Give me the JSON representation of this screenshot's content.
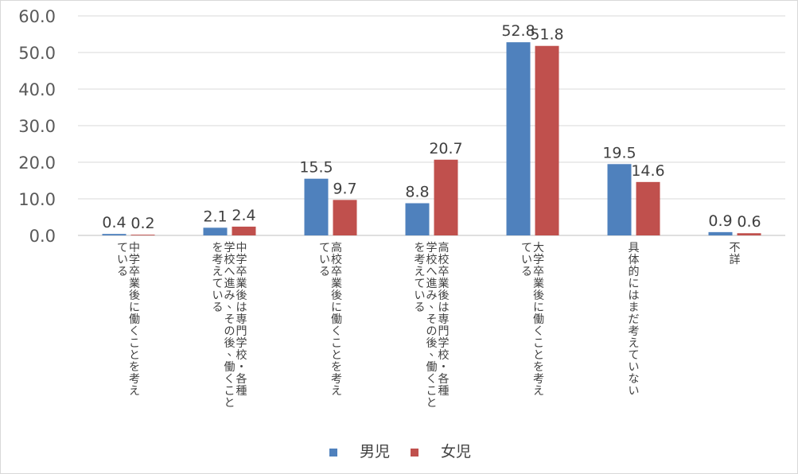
{
  "chart_data": {
    "type": "bar",
    "title": "",
    "xlabel": "",
    "ylabel": "",
    "ylim": [
      0,
      60
    ],
    "yticks": [
      "0.0",
      "10.0",
      "20.0",
      "30.0",
      "40.0",
      "50.0",
      "60.0"
    ],
    "grid": true,
    "legend_position": "bottom",
    "categories": [
      [
        "中学卒業後に働くことを考え",
        "ている"
      ],
      [
        "中学卒業後は専門学校・各種",
        "学校へ進み、その後、働くこと",
        "を考えている"
      ],
      [
        "高校卒業後に働くことを考え",
        "ている"
      ],
      [
        "高校卒業後は専門学校・各種",
        "学校へ進み、その後、働くこと",
        "を考えている"
      ],
      [
        "大学卒業後に働くことを考え",
        "ている"
      ],
      [
        "具体的にはまだ考えていない"
      ],
      [
        "不詳"
      ]
    ],
    "series": [
      {
        "name": "男児",
        "color": "#4f81bd",
        "values": [
          0.4,
          2.1,
          15.5,
          8.8,
          52.8,
          19.5,
          0.9
        ]
      },
      {
        "name": "女児",
        "color": "#c0504d",
        "values": [
          0.2,
          2.4,
          9.7,
          20.7,
          51.8,
          14.6,
          0.6
        ]
      }
    ]
  }
}
